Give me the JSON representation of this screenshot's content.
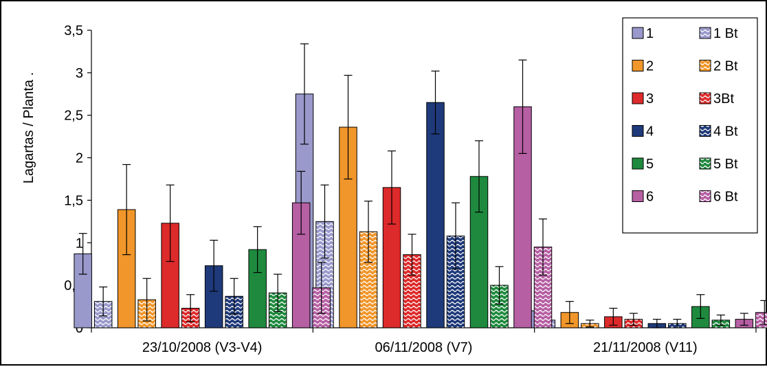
{
  "chart_data": {
    "type": "bar",
    "ylabel": "Lagartas / Planta  .",
    "xlabel": "",
    "ylim": [
      0,
      3.5
    ],
    "y_ticks": [
      "0",
      "0,5",
      "1",
      "1,5",
      "2",
      "2,5",
      "3",
      "3,5"
    ],
    "y_tick_values": [
      0,
      0.5,
      1,
      1.5,
      2,
      2.5,
      3,
      3.5
    ],
    "categories": [
      "23/10/2008 (V3-V4)",
      "06/11/2008 (V7)",
      "21/11/2008 (V11)"
    ],
    "series": [
      {
        "name": "1",
        "color": "#9999cc",
        "pattern": false,
        "values": [
          0.87,
          2.75,
          0.2
        ],
        "errors": [
          0.24,
          0.59,
          0.12
        ]
      },
      {
        "name": "1 Bt",
        "color": "#9999cc",
        "pattern": true,
        "values": [
          0.31,
          1.25,
          0.09
        ],
        "errors": [
          0.17,
          0.43,
          0.05
        ]
      },
      {
        "name": "2",
        "color": "#f0962a",
        "pattern": false,
        "values": [
          1.39,
          2.36,
          0.18
        ],
        "errors": [
          0.53,
          0.61,
          0.13
        ]
      },
      {
        "name": "2 Bt",
        "color": "#f0962a",
        "pattern": true,
        "values": [
          0.33,
          1.13,
          0.05
        ],
        "errors": [
          0.25,
          0.36,
          0.04
        ]
      },
      {
        "name": "3",
        "color": "#dd2a2a",
        "pattern": false,
        "values": [
          1.23,
          1.65,
          0.13
        ],
        "errors": [
          0.45,
          0.43,
          0.1
        ]
      },
      {
        "name": "3Bt",
        "color": "#dd2a2a",
        "pattern": true,
        "values": [
          0.23,
          0.86,
          0.1
        ],
        "errors": [
          0.16,
          0.24,
          0.07
        ]
      },
      {
        "name": "4",
        "color": "#1f3a7a",
        "pattern": false,
        "values": [
          0.73,
          2.65,
          0.05
        ],
        "errors": [
          0.3,
          0.37,
          0.05
        ]
      },
      {
        "name": "4 Bt",
        "color": "#1f3a7a",
        "pattern": true,
        "values": [
          0.37,
          1.08,
          0.05
        ],
        "errors": [
          0.21,
          0.39,
          0.05
        ]
      },
      {
        "name": "5",
        "color": "#1f8a3e",
        "pattern": false,
        "values": [
          0.92,
          1.78,
          0.25
        ],
        "errors": [
          0.27,
          0.42,
          0.14
        ]
      },
      {
        "name": "5 Bt",
        "color": "#1f8a3e",
        "pattern": true,
        "values": [
          0.41,
          0.5,
          0.09
        ],
        "errors": [
          0.22,
          0.22,
          0.06
        ]
      },
      {
        "name": "6",
        "color": "#b65fa3",
        "pattern": false,
        "values": [
          1.47,
          2.6,
          0.1
        ],
        "errors": [
          0.37,
          0.55,
          0.07
        ]
      },
      {
        "name": "6 Bt",
        "color": "#b65fa3",
        "pattern": true,
        "values": [
          0.47,
          0.95,
          0.18
        ],
        "errors": [
          0.3,
          0.33,
          0.14
        ]
      }
    ],
    "legend_position": "top-right",
    "grid": false
  }
}
